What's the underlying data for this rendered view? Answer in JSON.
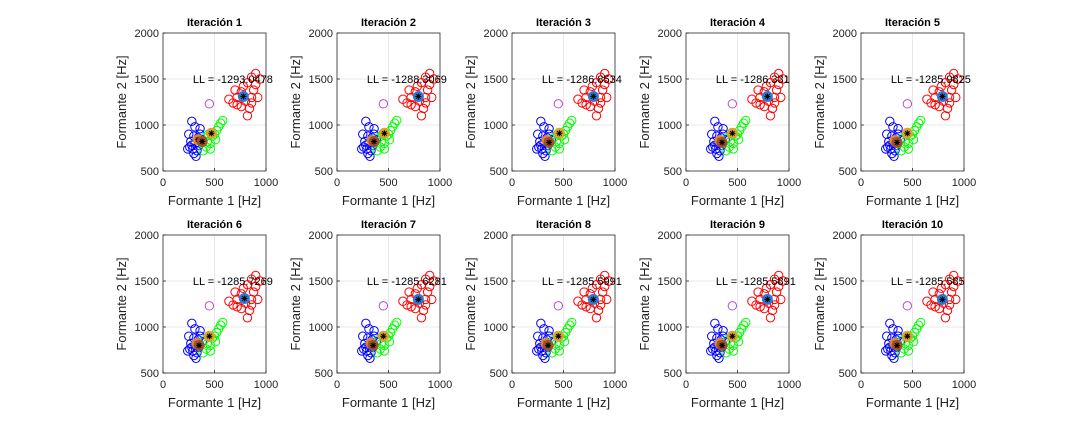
{
  "chart_data": {
    "type": "scatter",
    "layout": "2x5 subplots",
    "xlabel": "Formante 1 [Hz]",
    "ylabel": "Formante 2 [Hz]",
    "xlim": [
      0,
      1000
    ],
    "ylim": [
      500,
      2000
    ],
    "xticks": [
      "0",
      "500",
      "1000"
    ],
    "yticks": [
      "500",
      "1000",
      "1500",
      "2000"
    ],
    "grid": true,
    "point_colors": [
      "#0000ff",
      "#ff0000",
      "#00ff00",
      "#b44cc8"
    ],
    "centroid_colors": [
      "#2b7bd6",
      "#e08a2c",
      "#d9a42a",
      "#a0522d"
    ],
    "clusters": [
      {
        "color": "#0000ff",
        "points": [
          [
            280,
            1040
          ],
          [
            310,
            980
          ],
          [
            360,
            960
          ],
          [
            250,
            900
          ],
          [
            300,
            880
          ],
          [
            340,
            860
          ],
          [
            270,
            820
          ],
          [
            310,
            800
          ],
          [
            350,
            780
          ],
          [
            260,
            760
          ],
          [
            290,
            740
          ],
          [
            330,
            720
          ],
          [
            300,
            690
          ],
          [
            320,
            660
          ],
          [
            360,
            900
          ],
          [
            380,
            840
          ],
          [
            280,
            780
          ],
          [
            240,
            740
          ]
        ]
      },
      {
        "color": "#ff0000",
        "points": [
          [
            640,
            1280
          ],
          [
            680,
            1240
          ],
          [
            720,
            1220
          ],
          [
            760,
            1200
          ],
          [
            800,
            1260
          ],
          [
            840,
            1180
          ],
          [
            860,
            1300
          ],
          [
            880,
            1380
          ],
          [
            900,
            1440
          ],
          [
            920,
            1300
          ],
          [
            940,
            1500
          ],
          [
            900,
            1560
          ],
          [
            860,
            1520
          ],
          [
            820,
            1460
          ],
          [
            780,
            1420
          ],
          [
            760,
            1360
          ],
          [
            720,
            1300
          ],
          [
            820,
            1100
          ],
          [
            860,
            1240
          ],
          [
            700,
            1380
          ]
        ]
      },
      {
        "color": "#00ff00",
        "points": [
          [
            400,
            860
          ],
          [
            430,
            820
          ],
          [
            460,
            800
          ],
          [
            480,
            880
          ],
          [
            500,
            900
          ],
          [
            520,
            940
          ],
          [
            540,
            980
          ],
          [
            560,
            1020
          ],
          [
            580,
            1050
          ],
          [
            460,
            740
          ],
          [
            420,
            760
          ],
          [
            440,
            900
          ],
          [
            390,
            720
          ],
          [
            510,
            840
          ]
        ]
      },
      {
        "color": "#b44cc8",
        "points": [
          [
            450,
            1230
          ]
        ]
      }
    ],
    "subplots": [
      {
        "title": "Iteración 1",
        "ll": "LL = -1293.0478",
        "centroids": [
          [
            780,
            1310
          ],
          [
            340,
            840
          ],
          [
            470,
            910
          ],
          [
            380,
            820
          ]
        ]
      },
      {
        "title": "Iteración 2",
        "ll": "LL = -1288.3069",
        "centroids": [
          [
            790,
            1310
          ],
          [
            340,
            830
          ],
          [
            460,
            910
          ],
          [
            360,
            820
          ]
        ]
      },
      {
        "title": "Iteración 3",
        "ll": "LL = -1286.8534",
        "centroids": [
          [
            790,
            1310
          ],
          [
            340,
            830
          ],
          [
            460,
            910
          ],
          [
            360,
            810
          ]
        ]
      },
      {
        "title": "Iteración 4",
        "ll": "LL = -1286.331",
        "centroids": [
          [
            790,
            1310
          ],
          [
            330,
            830
          ],
          [
            450,
            910
          ],
          [
            350,
            810
          ]
        ]
      },
      {
        "title": "Iteración 5",
        "ll": "LL = -1285.9825",
        "centroids": [
          [
            790,
            1310
          ],
          [
            330,
            830
          ],
          [
            450,
            910
          ],
          [
            350,
            810
          ]
        ]
      },
      {
        "title": "Iteración 6",
        "ll": "LL = -1285.7269",
        "centroids": [
          [
            790,
            1310
          ],
          [
            330,
            820
          ],
          [
            450,
            900
          ],
          [
            350,
            800
          ]
        ]
      },
      {
        "title": "Iteración 7",
        "ll": "LL = -1285.6281",
        "centroids": [
          [
            790,
            1300
          ],
          [
            330,
            820
          ],
          [
            450,
            900
          ],
          [
            350,
            800
          ]
        ]
      },
      {
        "title": "Iteración 8",
        "ll": "LL = -1285.5991",
        "centroids": [
          [
            790,
            1300
          ],
          [
            330,
            820
          ],
          [
            450,
            900
          ],
          [
            350,
            800
          ]
        ]
      },
      {
        "title": "Iteración 9",
        "ll": "LL = -1285.5891",
        "centroids": [
          [
            790,
            1300
          ],
          [
            330,
            820
          ],
          [
            450,
            900
          ],
          [
            350,
            800
          ]
        ]
      },
      {
        "title": "Iteración 10",
        "ll": "LL = -1285.585",
        "centroids": [
          [
            790,
            1300
          ],
          [
            330,
            820
          ],
          [
            450,
            900
          ],
          [
            350,
            800
          ]
        ]
      }
    ]
  }
}
